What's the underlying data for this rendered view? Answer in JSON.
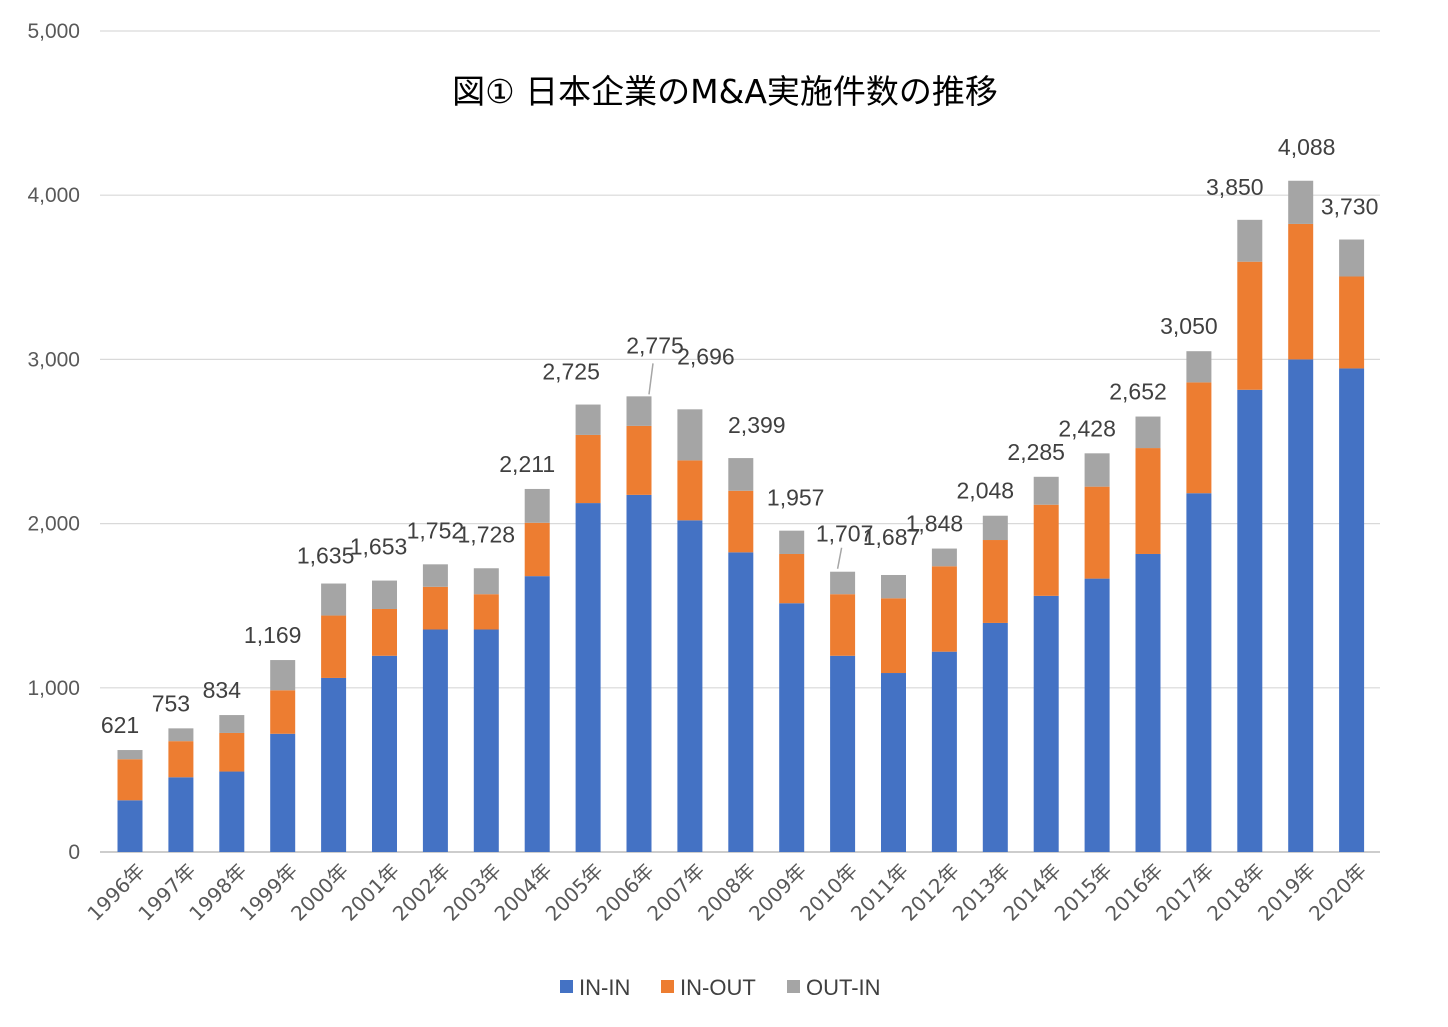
{
  "chart_data": {
    "type": "bar",
    "stacked": true,
    "title": "図① 日本企業のM&A実施件数の推移",
    "categories": [
      "1996年",
      "1997年",
      "1998年",
      "1999年",
      "2000年",
      "2001年",
      "2002年",
      "2003年",
      "2004年",
      "2005年",
      "2006年",
      "2007年",
      "2008年",
      "2009年",
      "2010年",
      "2011年",
      "2012年",
      "2013年",
      "2014年",
      "2015年",
      "2016年",
      "2017年",
      "2018年",
      "2019年",
      "2020年"
    ],
    "series": [
      {
        "name": "IN-IN",
        "color": "#4472C4",
        "values": [
          315,
          455,
          490,
          720,
          1060,
          1195,
          1355,
          1355,
          1680,
          2125,
          2175,
          2020,
          1825,
          1515,
          1195,
          1090,
          1220,
          1395,
          1560,
          1665,
          1815,
          2185,
          2815,
          3000,
          2945
        ]
      },
      {
        "name": "IN-OUT",
        "color": "#ED7D31",
        "values": [
          250,
          220,
          235,
          265,
          380,
          285,
          260,
          215,
          325,
          415,
          420,
          365,
          375,
          300,
          375,
          455,
          520,
          505,
          555,
          560,
          645,
          675,
          780,
          825,
          560
        ]
      },
      {
        "name": "OUT-IN",
        "color": "#A5A5A5",
        "values": [
          56,
          78,
          109,
          184,
          195,
          173,
          137,
          158,
          206,
          185,
          180,
          311,
          199,
          142,
          137,
          142,
          108,
          148,
          170,
          203,
          192,
          190,
          255,
          263,
          225
        ]
      }
    ],
    "totals": [
      621,
      753,
      834,
      1169,
      1635,
      1653,
      1752,
      1728,
      2211,
      2725,
      2775,
      2696,
      2399,
      1957,
      1707,
      1687,
      1848,
      2048,
      2285,
      2428,
      2652,
      3050,
      3850,
      4088,
      3730
    ],
    "total_labels": [
      "621",
      "753",
      "834",
      "1,169",
      "1,635",
      "1,653",
      "1,752",
      "1,728",
      "2,211",
      "2,725",
      "2,775",
      "2,696",
      "2,399",
      "1,957",
      "1,707",
      "1,687",
      "1,848",
      "2,048",
      "2,285",
      "2,428",
      "2,652",
      "3,050",
      "3,850",
      "4,088",
      "3,730"
    ],
    "yticks": [
      0,
      1000,
      2000,
      3000,
      4000,
      5000
    ],
    "ytick_labels": [
      "0",
      "1,000",
      "2,000",
      "3,000",
      "4,000",
      "5,000"
    ],
    "ylim": [
      0,
      5000
    ],
    "grid": true,
    "legend_position": "bottom"
  }
}
